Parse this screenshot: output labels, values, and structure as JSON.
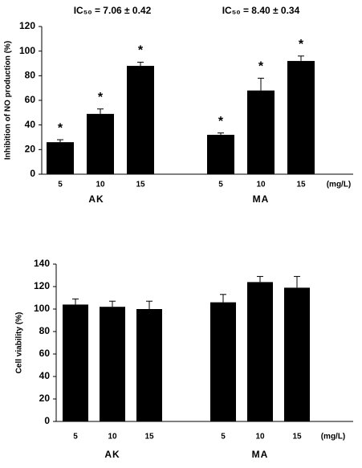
{
  "chart_data": [
    {
      "type": "bar",
      "annotations": [
        "IC₅₀ = 7.06 ± 0.42",
        "IC₅₀ = 8.40 ± 0.34"
      ],
      "ylabel": "Inhibition of NO production (%)",
      "x_unit": "(mg/L)",
      "groups": [
        "AK",
        "MA"
      ],
      "categories": [
        "5",
        "10",
        "15",
        "5",
        "10",
        "15"
      ],
      "values": [
        26,
        49,
        88,
        32,
        68,
        92
      ],
      "errors": [
        2,
        4,
        3,
        1.5,
        10,
        4
      ],
      "significance": [
        "*",
        "*",
        "*",
        "*",
        "*",
        "*"
      ],
      "color": "#000000",
      "ylim": [
        0,
        120
      ],
      "yticks": [
        0,
        20,
        40,
        60,
        80,
        100,
        120
      ]
    },
    {
      "type": "bar",
      "ylabel": "Cell viability (%)",
      "x_unit": "(mg/L)",
      "groups": [
        "AK",
        "MA"
      ],
      "categories": [
        "5",
        "10",
        "15",
        "5",
        "10",
        "15"
      ],
      "values": [
        104,
        102,
        100,
        106,
        124,
        119
      ],
      "errors": [
        5,
        5,
        7,
        7,
        5,
        10
      ],
      "color": "#000000",
      "ylim": [
        0,
        140
      ],
      "yticks": [
        0,
        20,
        40,
        60,
        80,
        100,
        120,
        140
      ]
    }
  ]
}
